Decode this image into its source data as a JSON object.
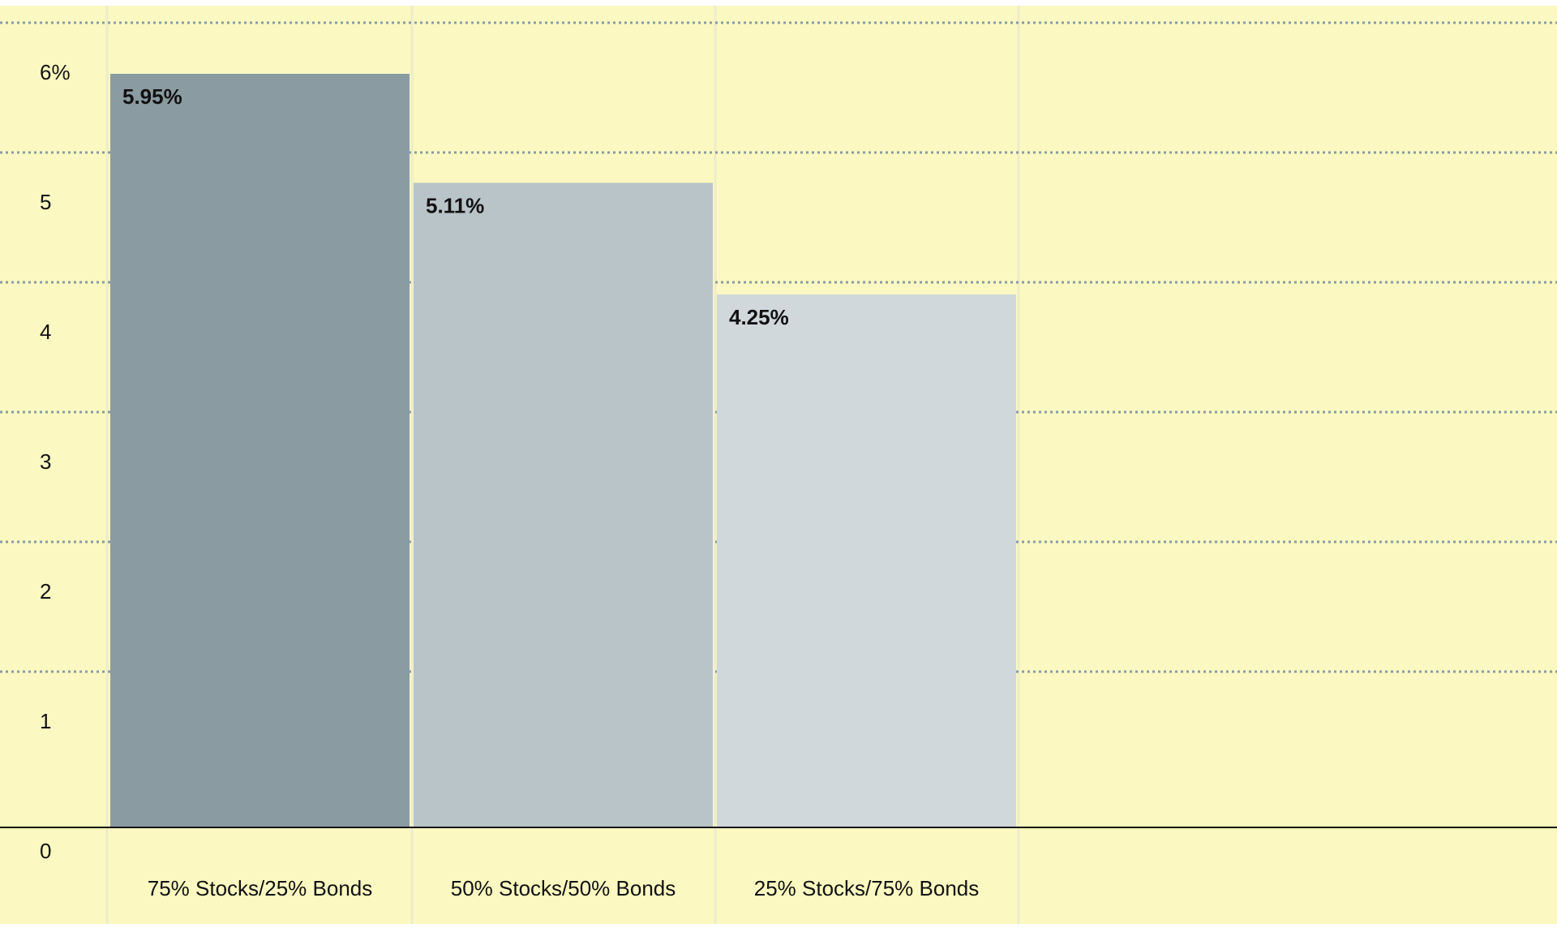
{
  "chart_data": {
    "type": "bar",
    "categories": [
      "75% Stocks/25% Bonds",
      "50% Stocks/50% Bonds",
      "25% Stocks/75% Bonds"
    ],
    "values": [
      5.95,
      5.11,
      4.25
    ],
    "data_labels": [
      "5.95%",
      "5.11%",
      "4.25%"
    ],
    "bar_colors": [
      "#8a9ba1",
      "#b9c4c9",
      "#d1d8dc"
    ],
    "yticks": [
      {
        "value": 0,
        "label": "0"
      },
      {
        "value": 1,
        "label": "1"
      },
      {
        "value": 2,
        "label": "2"
      },
      {
        "value": 3,
        "label": "3"
      },
      {
        "value": 4,
        "label": "4"
      },
      {
        "value": 5,
        "label": "5"
      },
      {
        "value": 6,
        "label": "6%"
      }
    ],
    "ylim": [
      0,
      6.13
    ],
    "grid": true,
    "grid_style": "dotted horizontal",
    "background_color": "#fbf9c1",
    "title": "",
    "xlabel": "",
    "ylabel": ""
  }
}
